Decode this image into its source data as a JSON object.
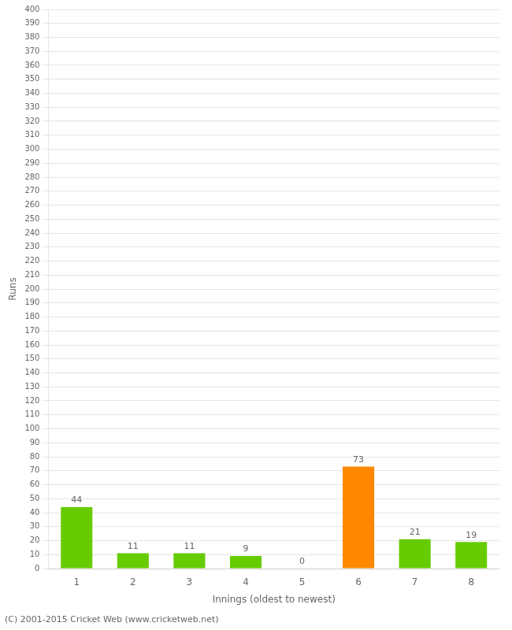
{
  "chart_data": {
    "type": "bar",
    "categories": [
      "1",
      "2",
      "3",
      "4",
      "5",
      "6",
      "7",
      "8"
    ],
    "values": [
      44,
      11,
      11,
      9,
      0,
      73,
      21,
      19
    ],
    "colors": [
      "#66cc00",
      "#66cc00",
      "#66cc00",
      "#66cc00",
      "#66cc00",
      "#ff8800",
      "#66cc00",
      "#66cc00"
    ],
    "xlabel": "Innings (oldest to newest)",
    "ylabel": "Runs",
    "ylim": [
      0,
      400
    ],
    "yticks": [
      0,
      10,
      20,
      30,
      40,
      50,
      60,
      70,
      80,
      90,
      100,
      110,
      120,
      130,
      140,
      150,
      160,
      170,
      180,
      190,
      200,
      210,
      220,
      230,
      240,
      250,
      260,
      270,
      280,
      290,
      300,
      310,
      320,
      330,
      340,
      350,
      360,
      370,
      380,
      390,
      400
    ],
    "grid": true,
    "data_labels": true,
    "annotations": [
      "(C) 2001-2015 Cricket Web (www.cricketweb.net)"
    ]
  }
}
